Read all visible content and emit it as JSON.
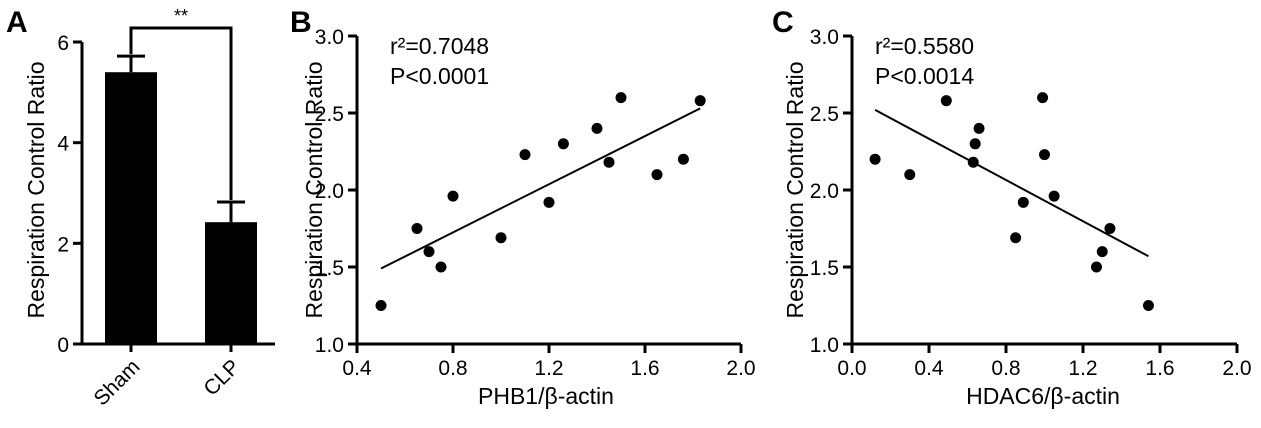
{
  "chart_data": [
    {
      "panel": "A",
      "type": "bar",
      "categories": [
        "Sham",
        "CLP"
      ],
      "values": [
        5.4,
        2.42
      ],
      "errors": [
        0.32,
        0.4
      ],
      "ylabel": "Respiration Control Ratio",
      "ylim": [
        0,
        6
      ],
      "yticks": [
        "0",
        "2",
        "4",
        "6"
      ],
      "significance": "**",
      "bar_color": "#000000"
    },
    {
      "panel": "B",
      "type": "scatter",
      "xlabel": "PHB1/β-actin",
      "ylabel": "Respiration Control Ratio",
      "xlim": [
        0.4,
        2.0
      ],
      "ylim": [
        1.0,
        3.0
      ],
      "xticks": [
        "0.4",
        "0.8",
        "1.2",
        "1.6",
        "2.0"
      ],
      "yticks": [
        "1.0",
        "1.5",
        "2.0",
        "2.5",
        "3.0"
      ],
      "stats": [
        "r²=0.7048",
        "P<0.0001"
      ],
      "points": [
        {
          "x": 0.5,
          "y": 1.25
        },
        {
          "x": 0.65,
          "y": 1.75
        },
        {
          "x": 0.7,
          "y": 1.6
        },
        {
          "x": 0.75,
          "y": 1.5
        },
        {
          "x": 0.8,
          "y": 1.96
        },
        {
          "x": 1.0,
          "y": 1.69
        },
        {
          "x": 1.1,
          "y": 2.23
        },
        {
          "x": 1.2,
          "y": 1.92
        },
        {
          "x": 1.26,
          "y": 2.3
        },
        {
          "x": 1.4,
          "y": 2.4
        },
        {
          "x": 1.45,
          "y": 2.18
        },
        {
          "x": 1.5,
          "y": 2.6
        },
        {
          "x": 1.65,
          "y": 2.1
        },
        {
          "x": 1.76,
          "y": 2.2
        },
        {
          "x": 1.83,
          "y": 2.58
        }
      ],
      "fit": {
        "x1": 0.5,
        "y1": 1.49,
        "x2": 1.83,
        "y2": 2.53
      }
    },
    {
      "panel": "C",
      "type": "scatter",
      "xlabel": "HDAC6/β-actin",
      "ylabel": "Respiration Control Ratio",
      "xlim": [
        0.0,
        2.0
      ],
      "ylim": [
        1.0,
        3.0
      ],
      "xticks": [
        "0.0",
        "0.4",
        "0.8",
        "1.2",
        "1.6",
        "2.0"
      ],
      "yticks": [
        "1.0",
        "1.5",
        "2.0",
        "2.5",
        "3.0"
      ],
      "stats": [
        "r²=0.5580",
        "P<0.0014"
      ],
      "points": [
        {
          "x": 0.12,
          "y": 2.2
        },
        {
          "x": 0.3,
          "y": 2.1
        },
        {
          "x": 0.49,
          "y": 2.58
        },
        {
          "x": 0.63,
          "y": 2.18
        },
        {
          "x": 0.64,
          "y": 2.3
        },
        {
          "x": 0.66,
          "y": 2.4
        },
        {
          "x": 0.85,
          "y": 1.69
        },
        {
          "x": 0.89,
          "y": 1.92
        },
        {
          "x": 0.99,
          "y": 2.6
        },
        {
          "x": 1.0,
          "y": 2.23
        },
        {
          "x": 1.05,
          "y": 1.96
        },
        {
          "x": 1.27,
          "y": 1.5
        },
        {
          "x": 1.3,
          "y": 1.6
        },
        {
          "x": 1.34,
          "y": 1.75
        },
        {
          "x": 1.54,
          "y": 1.25
        }
      ],
      "fit": {
        "x1": 0.12,
        "y1": 2.52,
        "x2": 1.54,
        "y2": 1.57
      }
    }
  ]
}
